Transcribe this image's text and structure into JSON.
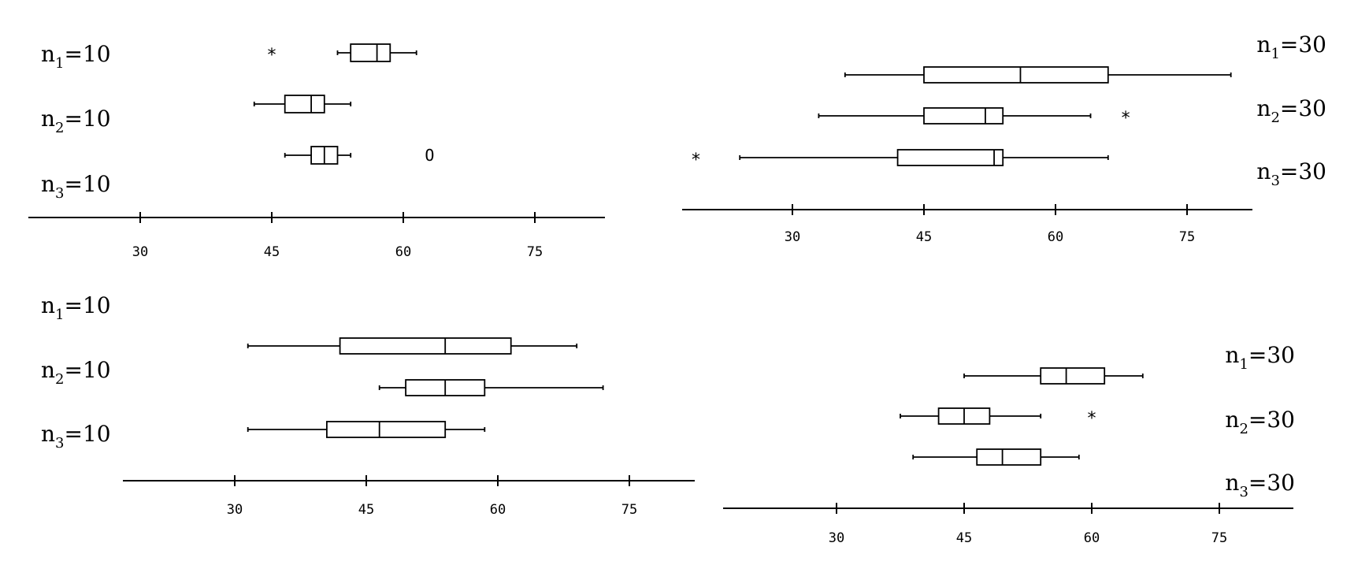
{
  "chart_data": [
    {
      "type": "boxplot",
      "axis": {
        "ticks": [
          30,
          45,
          60,
          75
        ]
      },
      "group_labels": [
        {
          "base": "n",
          "sub": "1",
          "rest": "=10"
        },
        {
          "base": "n",
          "sub": "2",
          "rest": "=10"
        },
        {
          "base": "n",
          "sub": "3",
          "rest": "=10"
        }
      ],
      "boxes": [
        {
          "whisker_low": 52.5,
          "q1": 54,
          "median": 57,
          "q3": 58.5,
          "whisker_high": 61.5,
          "outliers": [
            {
              "value": 45,
              "symbol": "*"
            }
          ]
        },
        {
          "whisker_low": 43,
          "q1": 46.5,
          "median": 49.5,
          "q3": 51,
          "whisker_high": 54,
          "outliers": []
        },
        {
          "whisker_low": 46.5,
          "q1": 49.5,
          "median": 51,
          "q3": 52.5,
          "whisker_high": 54,
          "outliers": [
            {
              "value": 63,
              "symbol": "O"
            }
          ]
        }
      ]
    },
    {
      "type": "boxplot",
      "axis": {
        "ticks": [
          30,
          45,
          60,
          75
        ]
      },
      "group_labels": [
        {
          "base": "n",
          "sub": "1",
          "rest": "=30"
        },
        {
          "base": "n",
          "sub": "2",
          "rest": "=30"
        },
        {
          "base": "n",
          "sub": "3",
          "rest": "=30"
        }
      ],
      "boxes": [
        {
          "whisker_low": 36,
          "q1": 45,
          "median": 56,
          "q3": 66,
          "whisker_high": 80,
          "outliers": []
        },
        {
          "whisker_low": 33,
          "q1": 45,
          "median": 52,
          "q3": 54,
          "whisker_high": 64,
          "outliers": [
            {
              "value": 68,
              "symbol": "*"
            }
          ]
        },
        {
          "whisker_low": 24,
          "q1": 42,
          "median": 53,
          "q3": 54,
          "whisker_high": 66,
          "outliers": [
            {
              "value": 19,
              "symbol": "*"
            }
          ]
        }
      ]
    },
    {
      "type": "boxplot",
      "axis": {
        "ticks": [
          30,
          45,
          60,
          75
        ]
      },
      "group_labels": [
        {
          "base": "n",
          "sub": "1",
          "rest": "=10"
        },
        {
          "base": "n",
          "sub": "2",
          "rest": "=10"
        },
        {
          "base": "n",
          "sub": "3",
          "rest": "=10"
        }
      ],
      "boxes": [
        {
          "whisker_low": 31.5,
          "q1": 42,
          "median": 54,
          "q3": 61.5,
          "whisker_high": 69,
          "outliers": []
        },
        {
          "whisker_low": 46.5,
          "q1": 49.5,
          "median": 54,
          "q3": 58.5,
          "whisker_high": 72,
          "outliers": []
        },
        {
          "whisker_low": 31.5,
          "q1": 40.5,
          "median": 46.5,
          "q3": 54,
          "whisker_high": 58.5,
          "outliers": []
        }
      ]
    },
    {
      "type": "boxplot",
      "axis": {
        "ticks": [
          30,
          45,
          60,
          75
        ]
      },
      "group_labels": [
        {
          "base": "n",
          "sub": "1",
          "rest": "=30"
        },
        {
          "base": "n",
          "sub": "2",
          "rest": "=30"
        },
        {
          "base": "n",
          "sub": "3",
          "rest": "=30"
        }
      ],
      "boxes": [
        {
          "whisker_low": 45,
          "q1": 54,
          "median": 57,
          "q3": 61.5,
          "whisker_high": 66,
          "outliers": []
        },
        {
          "whisker_low": 37.5,
          "q1": 42,
          "median": 45,
          "q3": 48,
          "whisker_high": 54,
          "outliers": [
            {
              "value": 60,
              "symbol": "*"
            }
          ]
        },
        {
          "whisker_low": 39,
          "q1": 46.5,
          "median": 49.5,
          "q3": 54,
          "whisker_high": 58.5,
          "outliers": []
        }
      ]
    }
  ]
}
